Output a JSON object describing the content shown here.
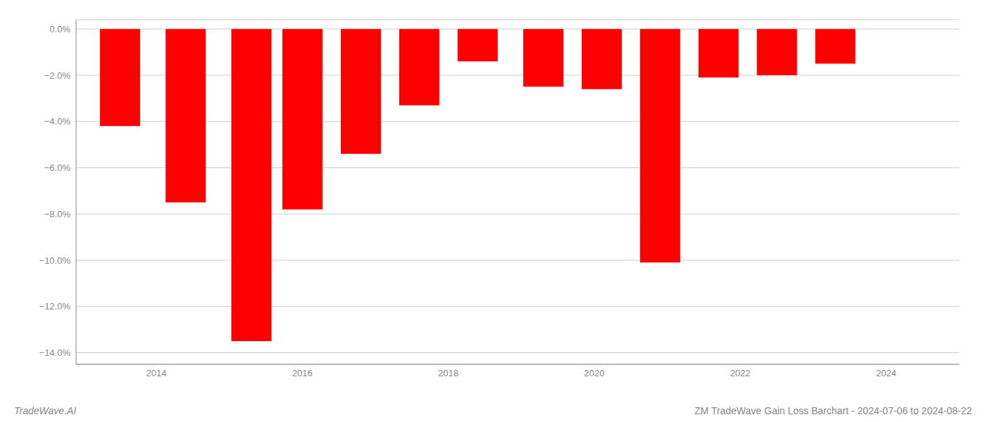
{
  "chart_data": {
    "type": "bar",
    "title": "ZM TradeWave Gain Loss Barchart - 2024-07-06 to 2024-08-22",
    "annotations": [
      "TradeWave.AI"
    ],
    "x": [
      2013.5,
      2014.4,
      2015.3,
      2016.0,
      2016.8,
      2017.6,
      2018.4,
      2019.3,
      2020.1,
      2020.9,
      2021.7,
      2022.5,
      2023.3
    ],
    "values": [
      -4.2,
      -7.5,
      -13.5,
      -7.8,
      -5.4,
      -3.3,
      -1.4,
      -2.5,
      -2.6,
      -10.1,
      -2.1,
      -2.0,
      -1.5
    ],
    "color": "#ff0000",
    "xlim": [
      2012.9,
      2025.0
    ],
    "xticks": [
      2014,
      2016,
      2018,
      2020,
      2022,
      2024
    ],
    "ylim": [
      -14.5,
      0.4
    ],
    "yticks": [
      {
        "value": 0.0,
        "label": "0.0%"
      },
      {
        "value": -2.0,
        "label": "−2.0%"
      },
      {
        "value": -4.0,
        "label": "−4.0%"
      },
      {
        "value": -6.0,
        "label": "−6.0%"
      },
      {
        "value": -8.0,
        "label": "−8.0%"
      },
      {
        "value": -10.0,
        "label": "−10.0%"
      },
      {
        "value": -12.0,
        "label": "−12.0%"
      },
      {
        "value": -14.0,
        "label": "−14.0%"
      }
    ],
    "grid": true
  }
}
